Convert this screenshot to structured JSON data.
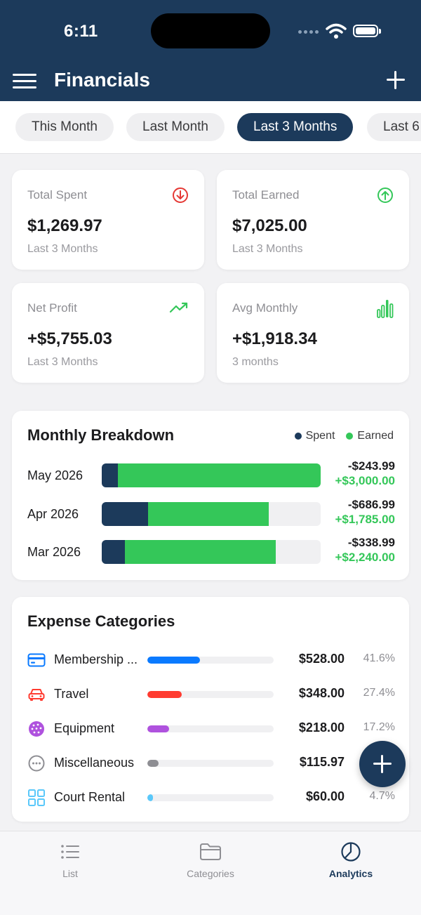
{
  "status_bar": {
    "time": "6:11"
  },
  "header": {
    "title": "Financials"
  },
  "filters": [
    {
      "label": "This Month",
      "active": false
    },
    {
      "label": "Last Month",
      "active": false
    },
    {
      "label": "Last 3 Months",
      "active": true
    },
    {
      "label": "Last 6",
      "active": false
    }
  ],
  "stats": {
    "total_spent": {
      "label": "Total Spent",
      "value": "$1,269.97",
      "sub": "Last 3 Months",
      "icon": "arrow-down-circle-icon",
      "color": "#e53935"
    },
    "total_earned": {
      "label": "Total Earned",
      "value": "$7,025.00",
      "sub": "Last 3 Months",
      "icon": "arrow-up-circle-icon",
      "color": "#34c759"
    },
    "net_profit": {
      "label": "Net Profit",
      "value": "+$5,755.03",
      "sub": "Last 3 Months",
      "icon": "trending-up-icon",
      "color": "#34c759"
    },
    "avg_monthly": {
      "label": "Avg Monthly",
      "value": "+$1,918.34",
      "sub": "3 months",
      "icon": "bar-chart-icon",
      "color": "#34c759"
    }
  },
  "breakdown": {
    "title": "Monthly Breakdown",
    "legend": {
      "spent": "Spent",
      "earned": "Earned"
    },
    "colors": {
      "spent": "#1c3a5b",
      "earned": "#34c759"
    },
    "max_value": 3243.99,
    "rows": [
      {
        "month": "May 2026",
        "spent": 243.99,
        "earned": 3000.0,
        "spent_text": "-$243.99",
        "earned_text": "+$3,000.00"
      },
      {
        "month": "Apr 2026",
        "spent": 686.99,
        "earned": 1785.0,
        "spent_text": "-$686.99",
        "earned_text": "+$1,785.00"
      },
      {
        "month": "Mar 2026",
        "spent": 338.99,
        "earned": 2240.0,
        "spent_text": "-$338.99",
        "earned_text": "+$2,240.00"
      }
    ]
  },
  "categories": {
    "title": "Expense Categories",
    "items": [
      {
        "name": "Membership ...",
        "amount": "$528.00",
        "percent": "41.6%",
        "fill": 0.416,
        "color": "#0a7aff",
        "icon": "credit-card-icon"
      },
      {
        "name": "Travel",
        "amount": "$348.00",
        "percent": "27.4%",
        "fill": 0.274,
        "color": "#ff3b30",
        "icon": "car-icon"
      },
      {
        "name": "Equipment",
        "amount": "$218.00",
        "percent": "17.2%",
        "fill": 0.172,
        "color": "#af52de",
        "icon": "ball-icon"
      },
      {
        "name": "Miscellaneous",
        "amount": "$115.97",
        "percent": "",
        "fill": 0.091,
        "color": "#8e8e93",
        "icon": "ellipsis-circle-icon"
      },
      {
        "name": "Court Rental",
        "amount": "$60.00",
        "percent": "4.7%",
        "fill": 0.047,
        "color": "#5ac8fa",
        "icon": "grid-icon"
      }
    ]
  },
  "bottom_nav": [
    {
      "label": "List",
      "icon": "list-icon",
      "active": false
    },
    {
      "label": "Categories",
      "icon": "folder-icon",
      "active": false
    },
    {
      "label": "Analytics",
      "icon": "pie-chart-icon",
      "active": true
    }
  ]
}
